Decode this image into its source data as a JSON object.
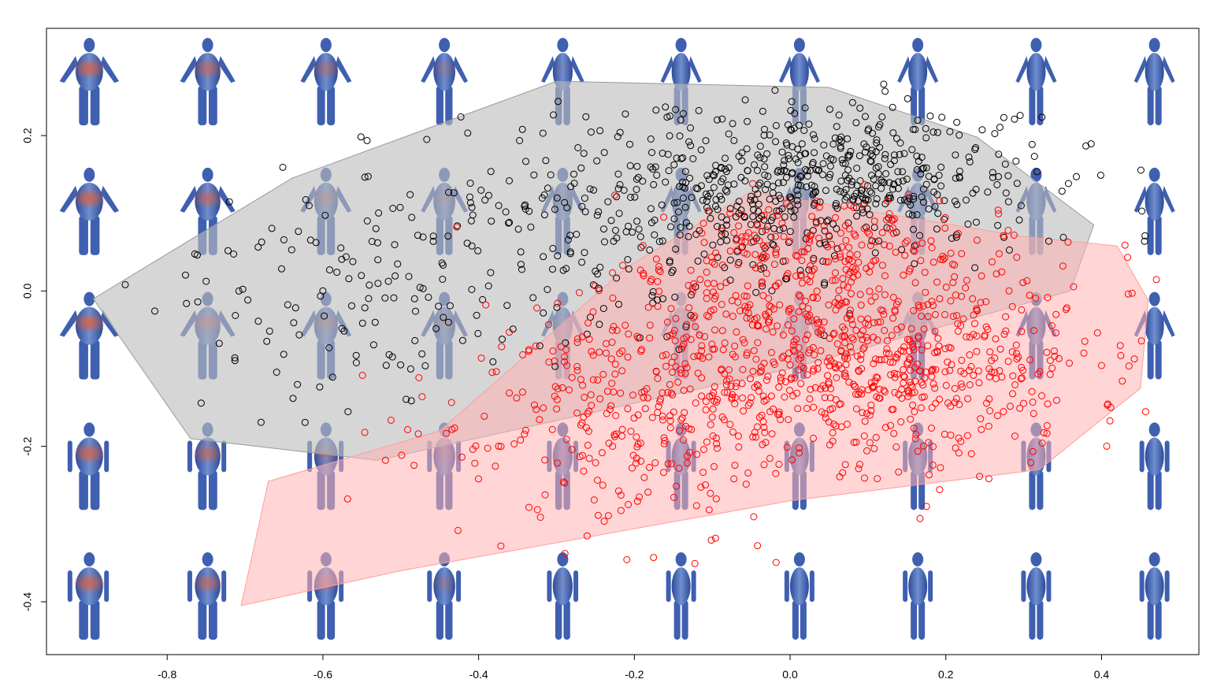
{
  "chart_data": {
    "type": "scatter",
    "title": "",
    "xlabel": "",
    "ylabel": "",
    "xlim": [
      -0.955,
      0.525
    ],
    "ylim": [
      -0.468,
      0.338
    ],
    "x_ticks": [
      -0.8,
      -0.6,
      -0.4,
      -0.2,
      0.0,
      0.2,
      0.4
    ],
    "x_tick_labels": [
      "-0.8",
      "-0.6",
      "-0.4",
      "-0.2",
      "0.0",
      "0.2",
      "0.4"
    ],
    "y_ticks": [
      -0.4,
      -0.2,
      0.0,
      0.2
    ],
    "y_tick_labels": [
      "-0.4",
      "-0.2",
      "0.0",
      "0.2"
    ],
    "grid": false,
    "legend": "none",
    "background_icons": {
      "description": "grid of 3D body-shape renderings (female top rows, male bottom rows) colored blue with orange heat areas",
      "columns_x": [
        -0.9,
        -0.748,
        -0.596,
        -0.444,
        -0.292,
        -0.14,
        0.012,
        0.164,
        0.316,
        0.468
      ],
      "rows_y": [
        0.272,
        0.105,
        -0.055,
        -0.223,
        -0.39
      ],
      "row_gender": [
        "female",
        "female",
        "female",
        "male",
        "male"
      ],
      "base_color": "#3f5fb0",
      "heat_color": "#e2603c"
    },
    "series": [
      {
        "color": "#000000",
        "hull_fill": "#bdbdbd",
        "hull": [
          [
            -0.895,
            -0.01
          ],
          [
            -0.64,
            0.145
          ],
          [
            -0.3,
            0.27
          ],
          [
            0.05,
            0.262
          ],
          [
            0.24,
            0.198
          ],
          [
            0.39,
            0.085
          ],
          [
            0.36,
            0.0
          ],
          [
            0.0,
            -0.1
          ],
          [
            -0.53,
            -0.218
          ],
          [
            -0.77,
            -0.19
          ]
        ],
        "clusters": [
          {
            "cx": 0.05,
            "cy": 0.14,
            "sx": 0.13,
            "sy": 0.05,
            "n": 520
          },
          {
            "cx": -0.25,
            "cy": 0.08,
            "sx": 0.16,
            "sy": 0.07,
            "n": 220
          },
          {
            "cx": -0.55,
            "cy": -0.02,
            "sx": 0.14,
            "sy": 0.07,
            "n": 110
          }
        ],
        "seed": 7
      },
      {
        "color": "#ff0000",
        "hull_fill": "#ffb3b3",
        "hull": [
          [
            -0.705,
            -0.405
          ],
          [
            -0.67,
            -0.245
          ],
          [
            -0.45,
            -0.18
          ],
          [
            -0.21,
            0.03
          ],
          [
            -0.05,
            0.128
          ],
          [
            0.3,
            0.07
          ],
          [
            0.42,
            0.058
          ],
          [
            0.46,
            -0.012
          ],
          [
            0.45,
            -0.125
          ],
          [
            0.32,
            -0.23
          ],
          [
            0.0,
            -0.27
          ],
          [
            -0.5,
            -0.36
          ]
        ],
        "clusters": [
          {
            "cx": 0.06,
            "cy": -0.08,
            "sx": 0.16,
            "sy": 0.07,
            "n": 860
          },
          {
            "cx": -0.22,
            "cy": -0.18,
            "sx": 0.13,
            "sy": 0.07,
            "n": 210
          },
          {
            "cx": 0.05,
            "cy": 0.05,
            "sx": 0.1,
            "sy": 0.035,
            "n": 160
          }
        ],
        "seed": 11
      }
    ]
  }
}
